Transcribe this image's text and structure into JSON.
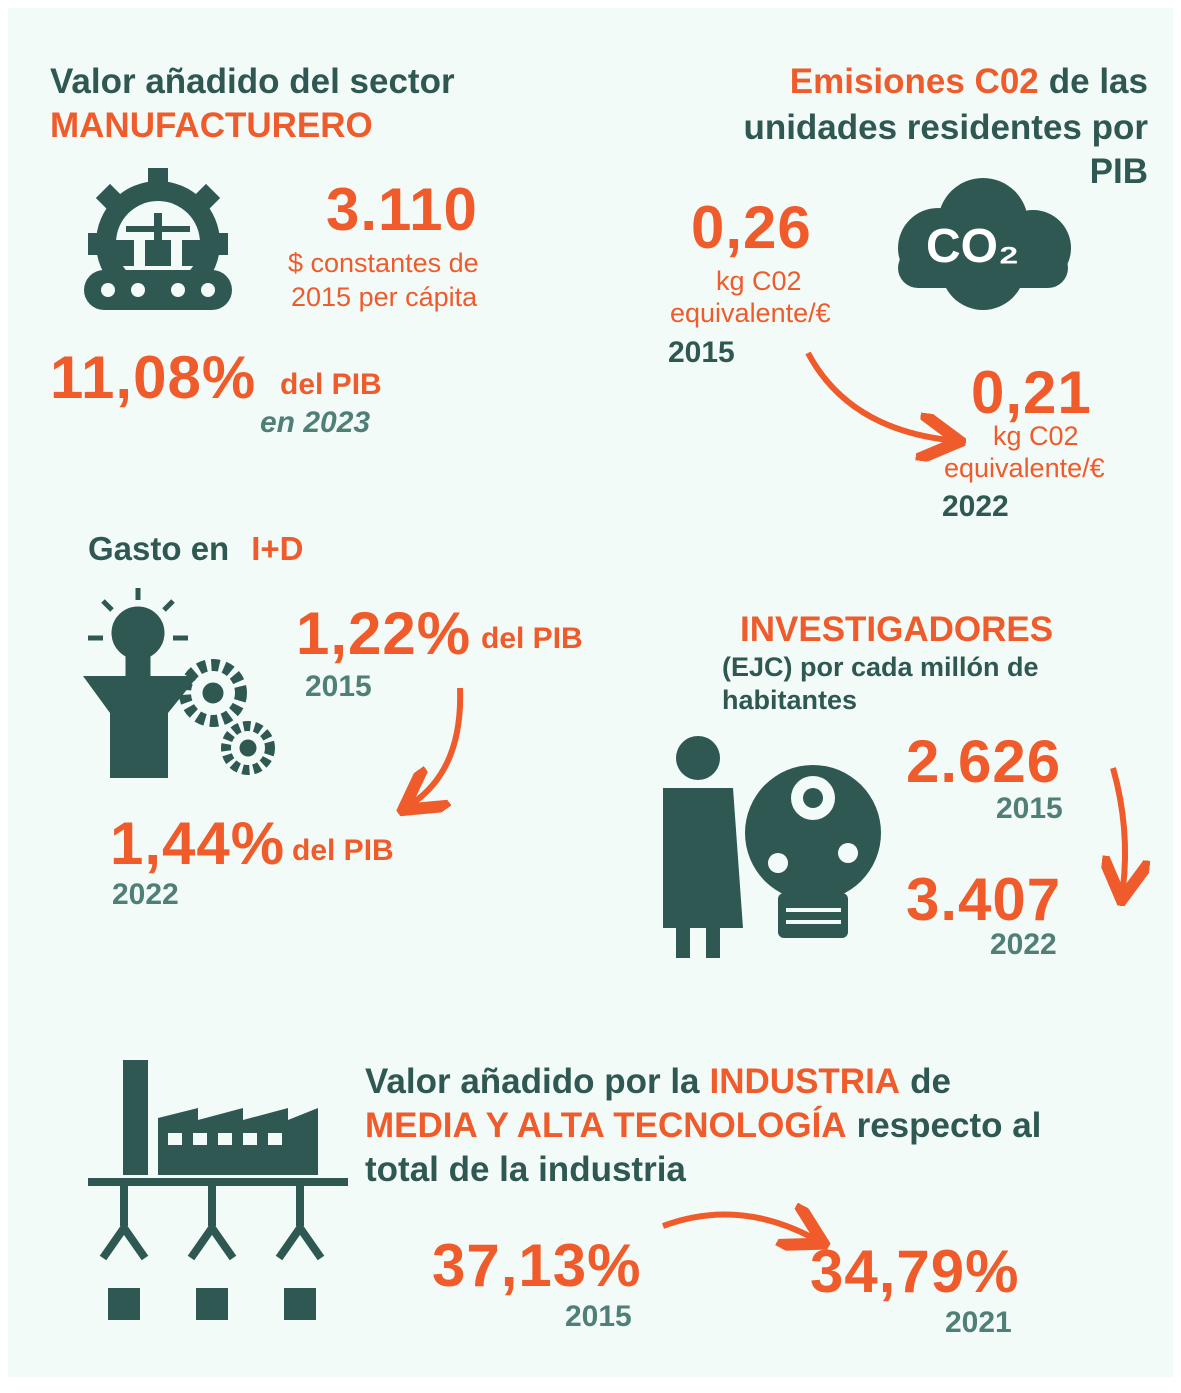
{
  "manufacturing": {
    "title": [
      "Valor añadido del sector",
      "MANUFACTURERO"
    ],
    "value": "3.110",
    "unit": [
      "$ constantes de",
      "2015 per cápita"
    ],
    "share": "11,08%",
    "share_unit": "del PIB",
    "year": "en 2023"
  },
  "emissions": {
    "title": [
      "Emisiones C02",
      "de las",
      "unidades residentes por",
      "PIB"
    ],
    "icon_label": "CO₂",
    "first": {
      "value": "0,26",
      "unit": [
        "kg C02",
        "equivalente/€"
      ],
      "year": "2015"
    },
    "second": {
      "value": "0,21",
      "unit": [
        "kg C02",
        "equivalente/€"
      ],
      "year": "2022"
    }
  },
  "rd": {
    "title": [
      "Gasto en",
      "I+D"
    ],
    "first": {
      "value": "1,22%",
      "unit": "del PIB",
      "year": "2015"
    },
    "second": {
      "value": "1,44%",
      "unit": "del PIB",
      "year": "2022"
    }
  },
  "researchers": {
    "title": "INVESTIGADORES",
    "subtitle": [
      "(EJC) por cada millón de",
      "habitantes"
    ],
    "first": {
      "value": "2.626",
      "year": "2015"
    },
    "second": {
      "value": "3.407",
      "year": "2022"
    }
  },
  "industry": {
    "title": [
      [
        "Valor añadido por la",
        "INDUSTRIA",
        "de"
      ],
      [
        "MEDIA Y ALTA TECNOLOGÍA",
        "respecto al"
      ],
      [
        "total de la industria"
      ]
    ],
    "first": {
      "value": "37,13%",
      "year": "2015"
    },
    "second": {
      "value": "34,79%",
      "year": "2021"
    }
  }
}
